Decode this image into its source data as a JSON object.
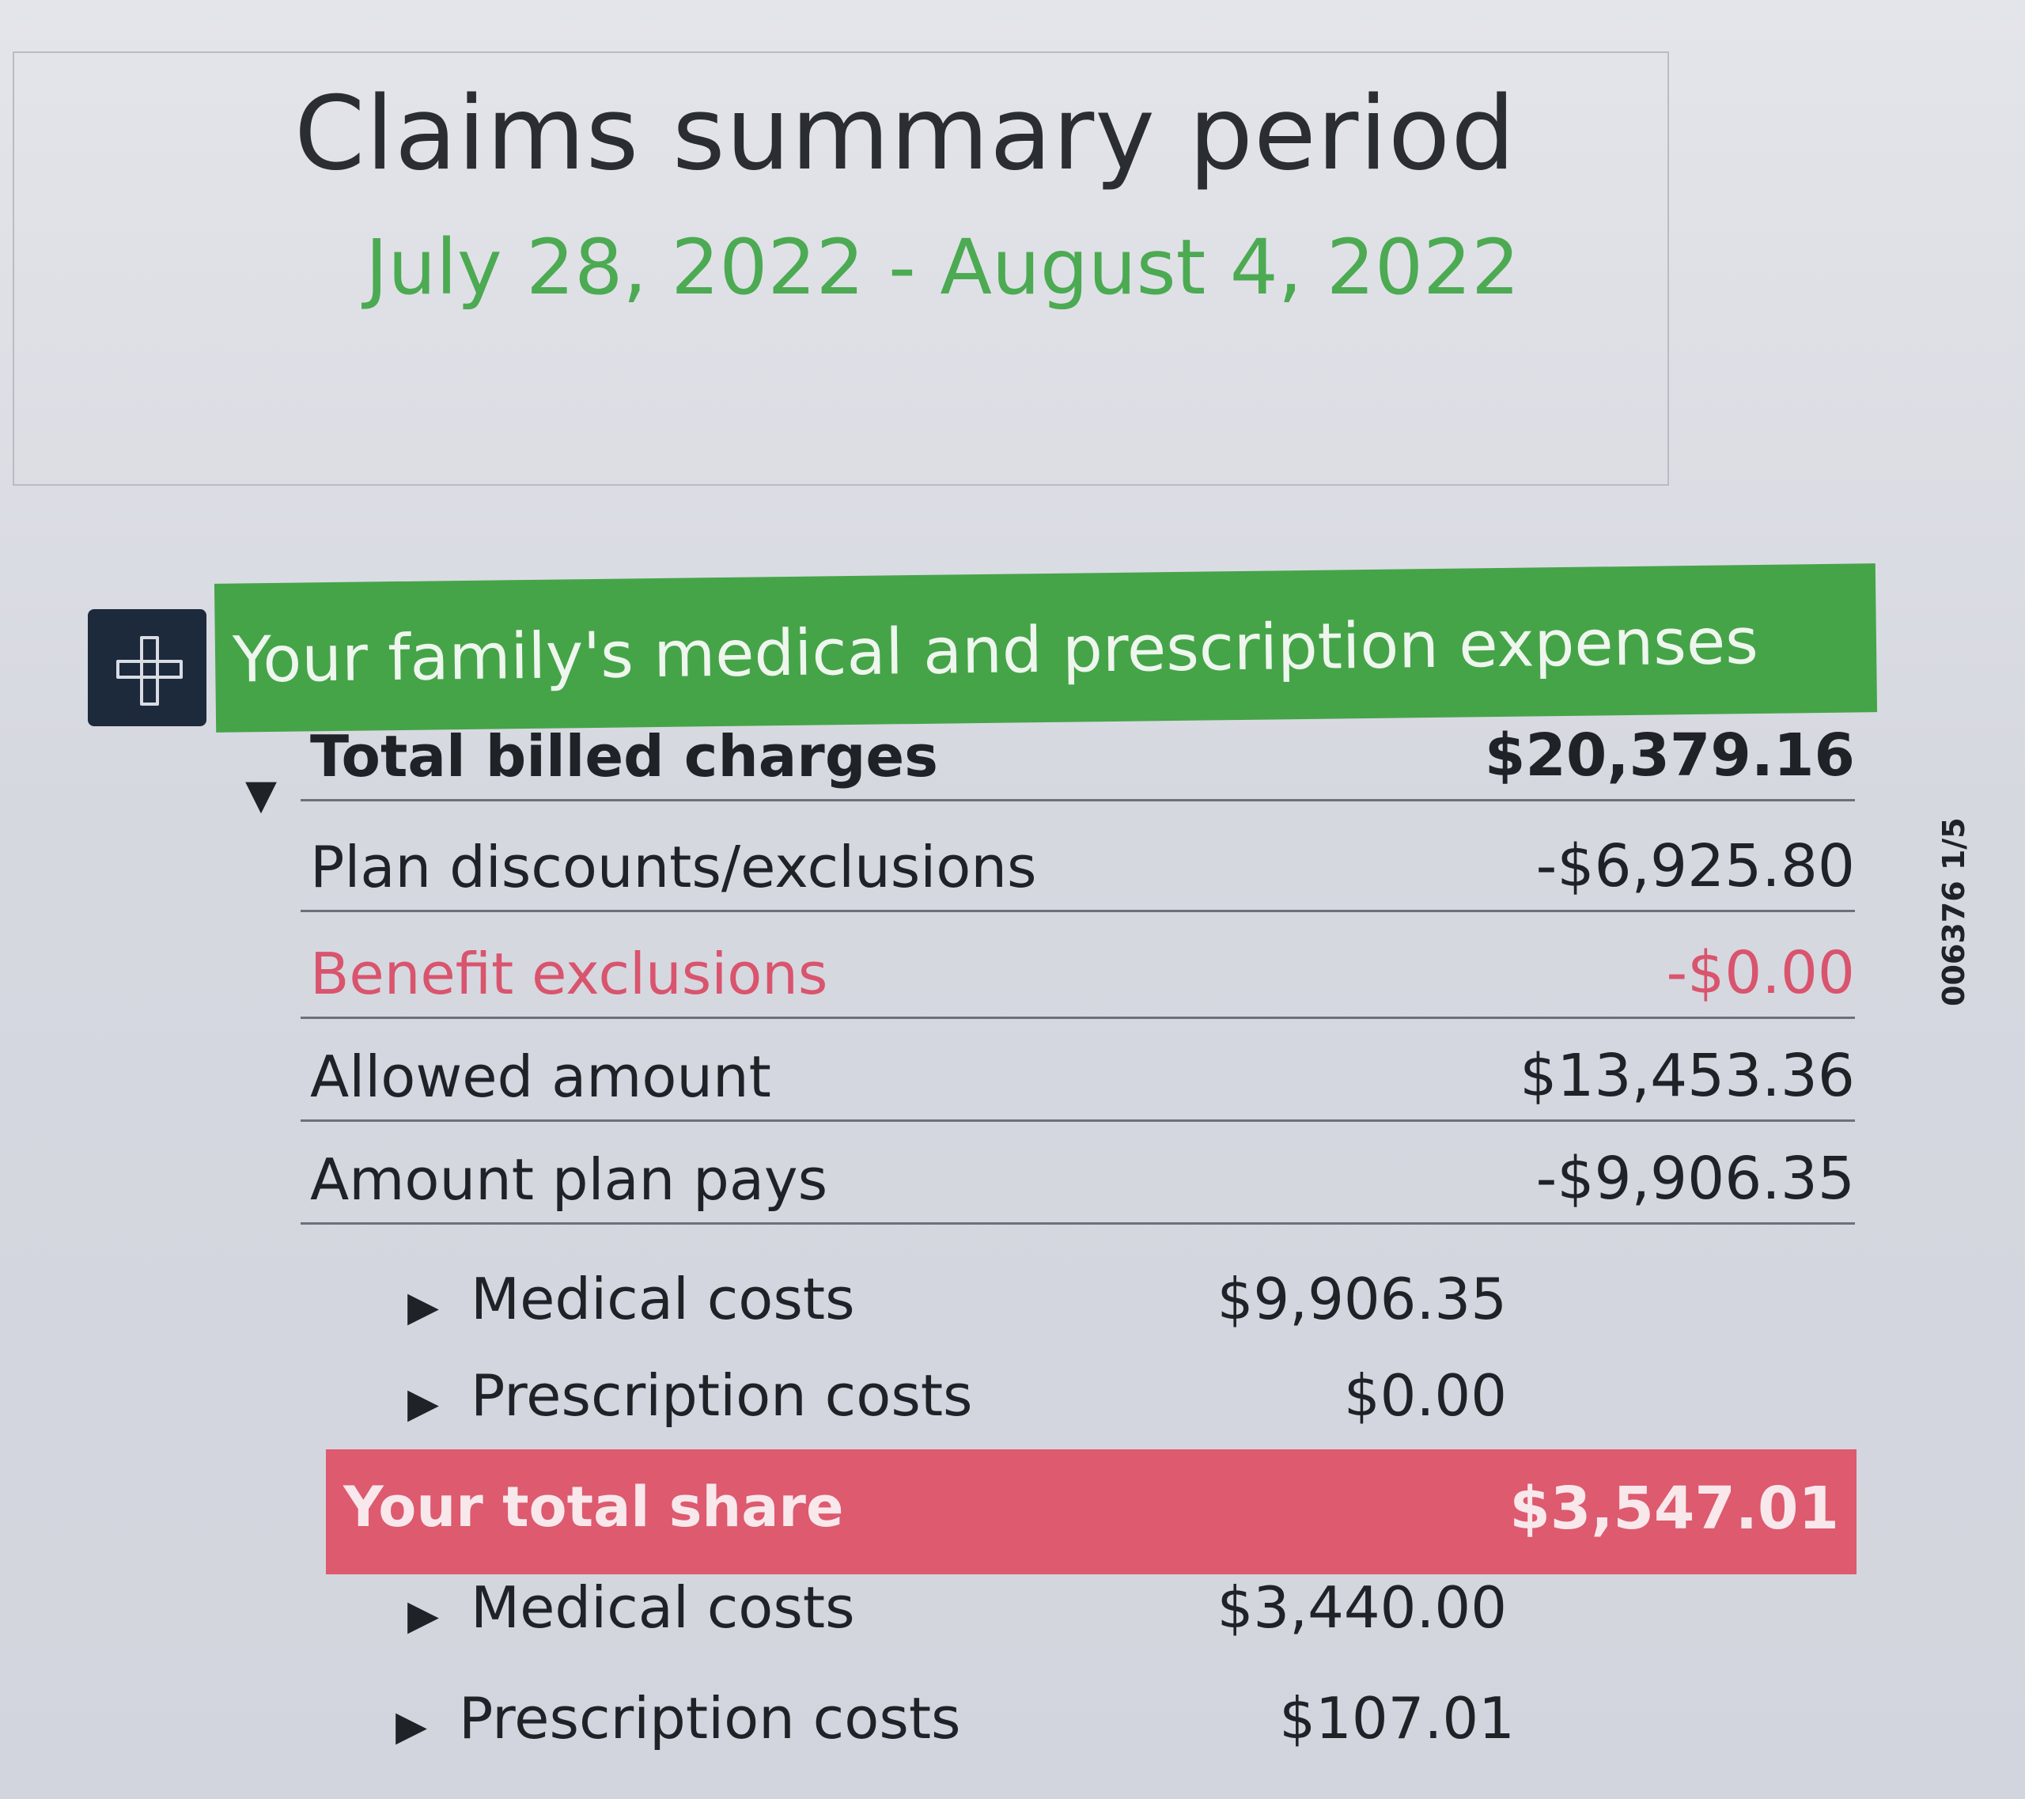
{
  "header": {
    "title": "Claims summary period",
    "period": "July 28, 2022 - August 4, 2022"
  },
  "section": {
    "icon": "medical-cross-icon",
    "title": "Your family's medical and prescription expenses"
  },
  "rows": [
    {
      "label": "Total billed charges",
      "amount": "$20,379.16"
    },
    {
      "label": "Plan discounts/exclusions",
      "amount": "-$6,925.80"
    },
    {
      "label": "Benefit exclusions",
      "amount": "-$0.00"
    },
    {
      "label": "Allowed amount",
      "amount": "$13,453.36"
    },
    {
      "label": "Amount plan pays",
      "amount": "-$9,906.35"
    }
  ],
  "plan_pays_breakdown": [
    {
      "label": "Medical costs",
      "amount": "$9,906.35"
    },
    {
      "label": "Prescription costs",
      "amount": "$0.00"
    }
  ],
  "total_share": {
    "label": "Your total share",
    "amount": "$3,547.01"
  },
  "total_share_breakdown": [
    {
      "label": "Medical costs",
      "amount": "$3,440.00"
    },
    {
      "label": "Prescription costs",
      "amount": "$107.01"
    }
  ],
  "side_code": "006376 1/5",
  "colors": {
    "green": "#45a448",
    "pink": "#dd5a6f",
    "navy": "#1d2a3c"
  }
}
